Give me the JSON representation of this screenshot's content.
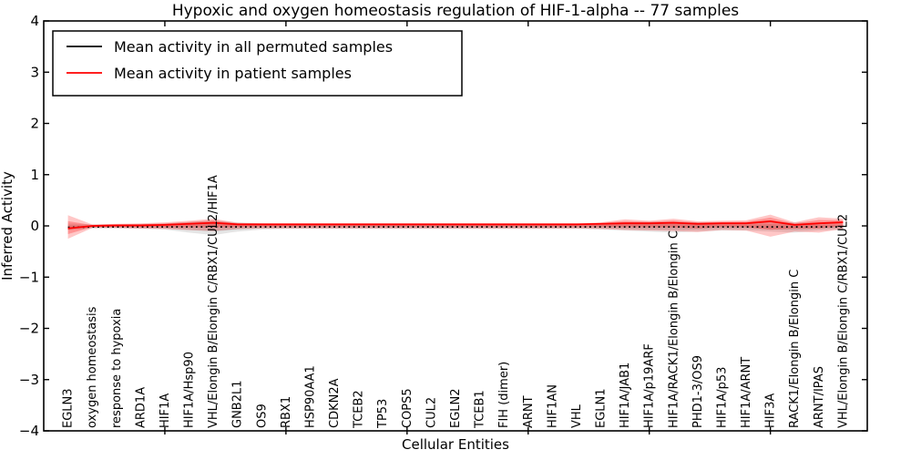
{
  "chart_data": {
    "type": "line",
    "title": "Hypoxic and oxygen homeostasis regulation of HIF-1-alpha -- 77 samples",
    "xlabel": "Cellular Entities",
    "ylabel": "Inferred Activity",
    "ylim": [
      -4,
      4
    ],
    "yticks": [
      4,
      3,
      2,
      1,
      0,
      -1,
      -2,
      -3,
      -4
    ],
    "ytick_labels": [
      "4",
      "3",
      "2",
      "1",
      "0",
      "−1",
      "−2",
      "−3",
      "−4"
    ],
    "xticks_every": 5,
    "grid": false,
    "legend_position": "upper left",
    "categories": [
      "EGLN3",
      "oxygen homeostasis",
      "response to hypoxia",
      "ARD1A",
      "HIF1A",
      "HIF1A/Hsp90",
      "VHL/Elongin B/Elongin C/RBX1/CUL2/HIF1A",
      "GNB2L1",
      "OS9",
      "RBX1",
      "HSP90AA1",
      "CDKN2A",
      "TCEB2",
      "TP53",
      "COPS5",
      "CUL2",
      "EGLN2",
      "TCEB1",
      "FIH (dimer)",
      "ARNT",
      "HIF1AN",
      "VHL",
      "EGLN1",
      "HIF1A/JAB1",
      "HIF1A/p19ARF",
      "HIF1A/RACK1/Elongin B/Elongin C",
      "PHD1-3/OS9",
      "HIF1A/p53",
      "HIF1A/ARNT",
      "HIF3A",
      "RACK1/Elongin B/Elongin C",
      "ARNT/IPAS",
      "VHL/Elongin B/Elongin C/RBX1/CUL2"
    ],
    "series": [
      {
        "name": "Mean activity in all permuted samples",
        "color": "#000000",
        "linestyle": "dotted",
        "band_color": "#000000",
        "band_opacity": 0.1,
        "values": [
          -0.03,
          -0.02,
          -0.02,
          -0.02,
          -0.02,
          -0.02,
          -0.02,
          -0.02,
          -0.02,
          -0.02,
          -0.02,
          -0.02,
          -0.02,
          -0.02,
          -0.02,
          -0.02,
          -0.02,
          -0.02,
          -0.02,
          -0.02,
          -0.02,
          -0.02,
          -0.02,
          -0.02,
          -0.02,
          -0.02,
          -0.02,
          -0.02,
          -0.02,
          -0.02,
          -0.02,
          -0.02,
          -0.02
        ],
        "band_upper": [
          0.05,
          0.03,
          0.03,
          0.04,
          0.05,
          0.08,
          0.11,
          0.07,
          0.05,
          0.04,
          0.04,
          0.04,
          0.04,
          0.04,
          0.04,
          0.04,
          0.04,
          0.04,
          0.04,
          0.04,
          0.04,
          0.04,
          0.05,
          0.07,
          0.08,
          0.08,
          0.07,
          0.06,
          0.06,
          0.08,
          0.07,
          0.06,
          0.05
        ],
        "band_lower": [
          -0.08,
          -0.05,
          -0.05,
          -0.06,
          -0.07,
          -0.13,
          -0.18,
          -0.11,
          -0.07,
          -0.06,
          -0.06,
          -0.06,
          -0.06,
          -0.06,
          -0.06,
          -0.06,
          -0.06,
          -0.06,
          -0.06,
          -0.06,
          -0.06,
          -0.06,
          -0.07,
          -0.09,
          -0.11,
          -0.13,
          -0.11,
          -0.09,
          -0.09,
          -0.11,
          -0.13,
          -0.09,
          -0.07
        ]
      },
      {
        "name": "Mean activity in patient samples",
        "color": "#ff0000",
        "linestyle": "solid",
        "band_color": "#ff0000",
        "band_opacity": 0.22,
        "values": [
          -0.05,
          0.0,
          0.01,
          0.01,
          0.02,
          0.04,
          0.06,
          0.03,
          0.03,
          0.03,
          0.03,
          0.03,
          0.03,
          0.03,
          0.03,
          0.03,
          0.03,
          0.03,
          0.03,
          0.03,
          0.03,
          0.03,
          0.04,
          0.05,
          0.05,
          0.06,
          0.04,
          0.05,
          0.05,
          0.09,
          0.02,
          0.05,
          0.07
        ],
        "band_upper": [
          0.21,
          0.03,
          0.04,
          0.05,
          0.07,
          0.1,
          0.14,
          0.06,
          0.05,
          0.05,
          0.05,
          0.05,
          0.05,
          0.05,
          0.05,
          0.05,
          0.05,
          0.05,
          0.05,
          0.05,
          0.05,
          0.05,
          0.07,
          0.13,
          0.1,
          0.14,
          0.09,
          0.1,
          0.11,
          0.22,
          0.07,
          0.17,
          0.14
        ],
        "band_lower": [
          -0.25,
          -0.04,
          -0.04,
          -0.05,
          -0.06,
          -0.08,
          -0.1,
          -0.06,
          -0.05,
          -0.05,
          -0.05,
          -0.05,
          -0.05,
          -0.05,
          -0.05,
          -0.05,
          -0.05,
          -0.05,
          -0.05,
          -0.05,
          -0.05,
          -0.05,
          -0.06,
          -0.08,
          -0.09,
          -0.1,
          -0.12,
          -0.08,
          -0.09,
          -0.21,
          -0.11,
          -0.13,
          -0.06
        ]
      }
    ]
  }
}
